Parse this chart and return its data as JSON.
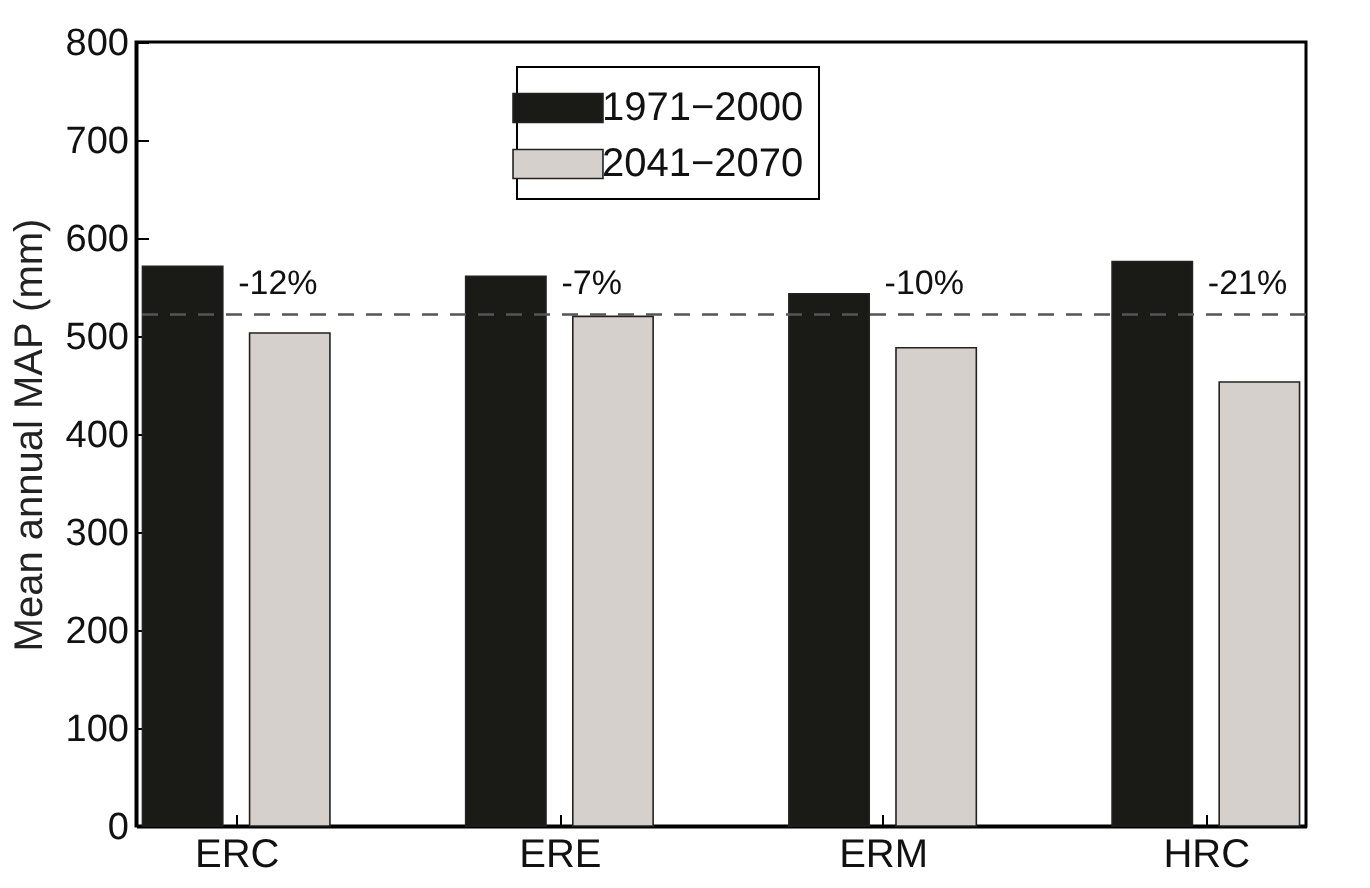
{
  "chart_data": {
    "type": "bar",
    "ylabel": "Mean annual MAP (mm)",
    "categories": [
      "ERC",
      "ERE",
      "ERM",
      "HRC"
    ],
    "series": [
      {
        "name": "1971−2000",
        "color": "#1a1a17",
        "values": [
          571,
          561,
          543,
          576
        ]
      },
      {
        "name": "2041−2070",
        "color": "#d6d0cd",
        "values": [
          503,
          520,
          488,
          453
        ]
      }
    ],
    "ylim": [
      0,
      800
    ],
    "yticks": [
      0,
      100,
      200,
      300,
      400,
      500,
      600,
      700,
      800
    ],
    "grid": false,
    "legend": "top",
    "ref_lines": [
      {
        "axis": "y",
        "value": 522,
        "color": "#555555",
        "line_style": "dashed"
      }
    ],
    "annotations": [
      "-12%",
      "-7%",
      "-10%",
      "-21%"
    ]
  }
}
